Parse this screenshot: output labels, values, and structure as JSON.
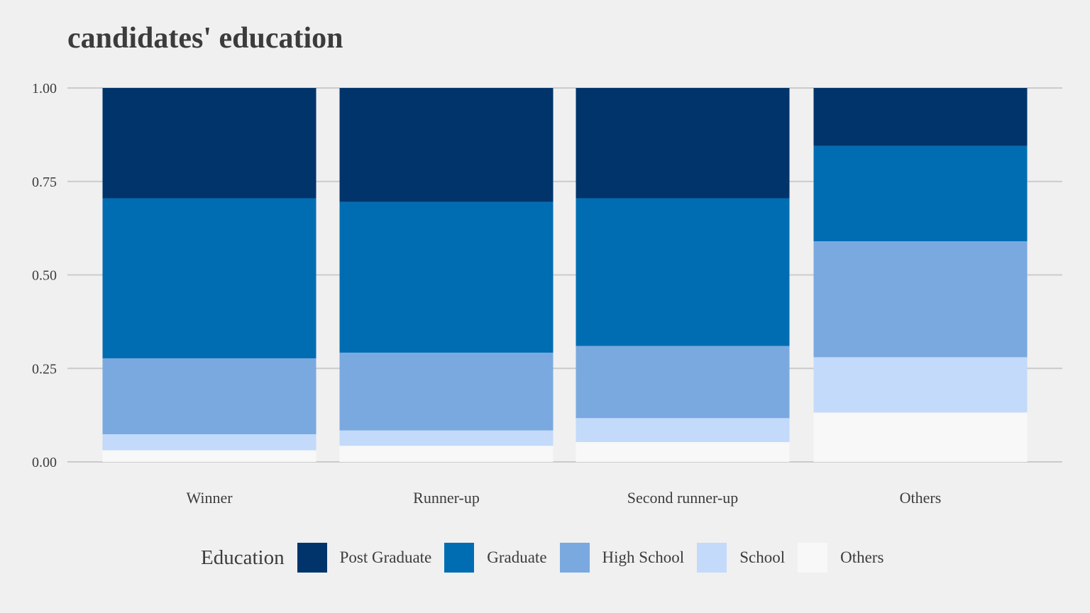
{
  "chart_data": {
    "type": "bar",
    "stacked": "percent",
    "title": "candidates' education",
    "xlabel": "",
    "ylabel": "",
    "ylim": [
      0,
      1
    ],
    "yticks": [
      "0.00",
      "0.25",
      "0.50",
      "0.75",
      "1.00"
    ],
    "grid": true,
    "legend_position": "bottom",
    "legend_title": "Education",
    "categories": [
      "Winner",
      "Runner-up",
      "Second runner-up",
      "Others"
    ],
    "series": [
      {
        "name": "Post Graduate",
        "color": "#00346b",
        "values": [
          0.295,
          0.305,
          0.295,
          0.155
        ]
      },
      {
        "name": "Graduate",
        "color": "#006db3",
        "values": [
          0.428,
          0.403,
          0.395,
          0.255
        ]
      },
      {
        "name": "High School",
        "color": "#7aa9e0",
        "values": [
          0.203,
          0.208,
          0.193,
          0.31
        ]
      },
      {
        "name": "School",
        "color": "#c3dafa",
        "values": [
          0.043,
          0.041,
          0.064,
          0.148
        ]
      },
      {
        "name": "Others",
        "color": "#f8f8f8",
        "values": [
          0.031,
          0.043,
          0.053,
          0.132
        ]
      }
    ]
  }
}
